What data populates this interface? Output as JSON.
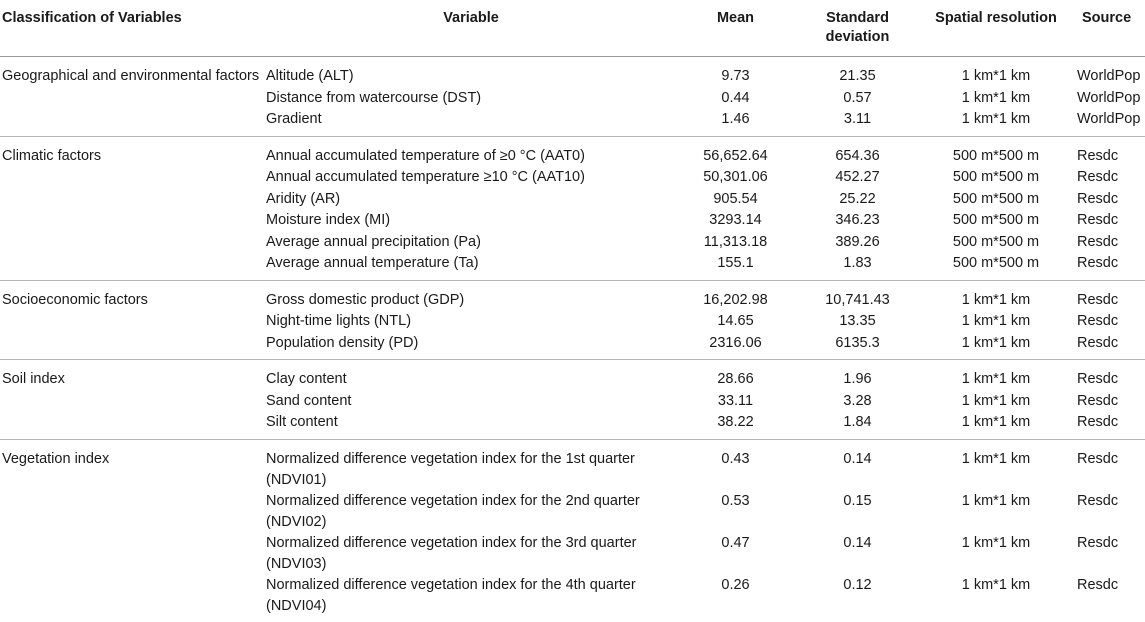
{
  "headers": {
    "classification": "Classification of Variables",
    "variable": "Variable",
    "mean": "Mean",
    "sd": "Standard deviation",
    "resolution": "Spatial resolution",
    "source": "Source"
  },
  "groups": [
    {
      "category": "Geographical and environmental factors",
      "rows": [
        {
          "variable": "Altitude (ALT)",
          "mean": "9.73",
          "sd": "21.35",
          "resolution": "1 km*1 km",
          "source": "WorldPop"
        },
        {
          "variable": "Distance from watercourse (DST)",
          "mean": "0.44",
          "sd": "0.57",
          "resolution": "1 km*1 km",
          "source": "WorldPop"
        },
        {
          "variable": "Gradient",
          "mean": "1.46",
          "sd": "3.11",
          "resolution": "1 km*1 km",
          "source": "WorldPop"
        }
      ]
    },
    {
      "category": "Climatic factors",
      "rows": [
        {
          "variable": "Annual accumulated temperature of ≥0 °C (AAT0)",
          "mean": "56,652.64",
          "sd": "654.36",
          "resolution": "500 m*500 m",
          "source": "Resdc"
        },
        {
          "variable": "Annual accumulated temperature ≥10 °C (AAT10)",
          "mean": "50,301.06",
          "sd": "452.27",
          "resolution": "500 m*500 m",
          "source": "Resdc"
        },
        {
          "variable": "Aridity (AR)",
          "mean": "905.54",
          "sd": "25.22",
          "resolution": "500 m*500 m",
          "source": "Resdc"
        },
        {
          "variable": "Moisture index (MI)",
          "mean": "3293.14",
          "sd": "346.23",
          "resolution": "500 m*500 m",
          "source": "Resdc"
        },
        {
          "variable": "Average annual precipitation (Pa)",
          "mean": "11,313.18",
          "sd": "389.26",
          "resolution": "500 m*500 m",
          "source": "Resdc"
        },
        {
          "variable": "Average annual temperature (Ta)",
          "mean": "155.1",
          "sd": "1.83",
          "resolution": "500 m*500 m",
          "source": "Resdc"
        }
      ]
    },
    {
      "category": "Socioeconomic factors",
      "rows": [
        {
          "variable": "Gross domestic product (GDP)",
          "mean": "16,202.98",
          "sd": "10,741.43",
          "resolution": "1 km*1 km",
          "source": "Resdc"
        },
        {
          "variable": "Night-time lights (NTL)",
          "mean": "14.65",
          "sd": "13.35",
          "resolution": "1 km*1 km",
          "source": "Resdc"
        },
        {
          "variable": "Population density (PD)",
          "mean": "2316.06",
          "sd": "6135.3",
          "resolution": "1 km*1 km",
          "source": "Resdc"
        }
      ]
    },
    {
      "category": "Soil index",
      "rows": [
        {
          "variable": "Clay content",
          "mean": "28.66",
          "sd": "1.96",
          "resolution": "1 km*1 km",
          "source": "Resdc"
        },
        {
          "variable": "Sand content",
          "mean": "33.11",
          "sd": "3.28",
          "resolution": "1 km*1 km",
          "source": "Resdc"
        },
        {
          "variable": "Silt content",
          "mean": "38.22",
          "sd": "1.84",
          "resolution": "1 km*1 km",
          "source": "Resdc"
        }
      ]
    },
    {
      "category": "Vegetation index",
      "rows": [
        {
          "variable": "Normalized difference vegetation index for the 1st quarter (NDVI01)",
          "mean": "0.43",
          "sd": "0.14",
          "resolution": "1 km*1 km",
          "source": "Resdc"
        },
        {
          "variable": "Normalized difference vegetation index for the 2nd quarter (NDVI02)",
          "mean": "0.53",
          "sd": "0.15",
          "resolution": "1 km*1 km",
          "source": "Resdc"
        },
        {
          "variable": "Normalized difference vegetation index for the 3rd quarter (NDVI03)",
          "mean": "0.47",
          "sd": "0.14",
          "resolution": "1 km*1 km",
          "source": "Resdc"
        },
        {
          "variable": "Normalized difference vegetation index for the 4th quarter (NDVI04)",
          "mean": "0.26",
          "sd": "0.12",
          "resolution": "1 km*1 km",
          "source": "Resdc"
        }
      ]
    }
  ]
}
